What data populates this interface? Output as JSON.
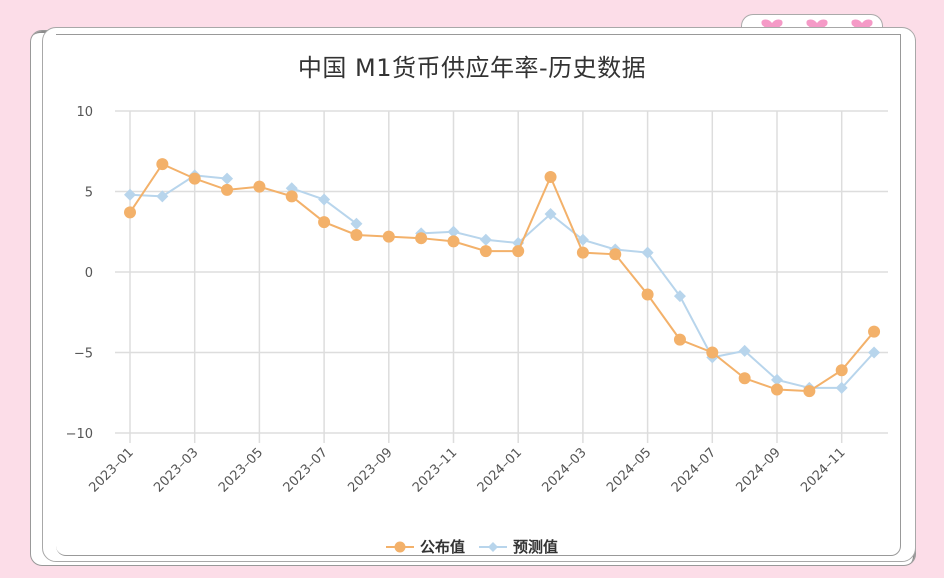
{
  "page": {
    "title": "中国 M1货币供应年率-历史数据"
  },
  "legend": {
    "published_label": "公布值",
    "forecast_label": "预测值"
  },
  "colors": {
    "background": "#fcdde8",
    "published": "#f3b16a",
    "forecast": "#b8d5ec",
    "heart": "#f59ac7",
    "grid": "#dddddd"
  },
  "chart_data": {
    "type": "line",
    "title": "中国 M1货币供应年率-历史数据",
    "xlabel": "",
    "ylabel": "",
    "ylim": [
      -10,
      10
    ],
    "yticks": [
      10,
      5,
      0,
      -5,
      -10
    ],
    "xtick_labels": [
      "2023-01",
      "2023-03",
      "2023-05",
      "2023-07",
      "2023-09",
      "2023-11",
      "2024-01",
      "2024-03",
      "2024-05",
      "2024-07",
      "2024-09",
      "2024-11"
    ],
    "grid": true,
    "legend_position": "bottom",
    "x": [
      "2023-01",
      "2023-02",
      "2023-03",
      "2023-04",
      "2023-05",
      "2023-06",
      "2023-07",
      "2023-08",
      "2023-09",
      "2023-10",
      "2023-11",
      "2023-12",
      "2024-01",
      "2024-02",
      "2024-03",
      "2024-04",
      "2024-05",
      "2024-06",
      "2024-07",
      "2024-08",
      "2024-09",
      "2024-10",
      "2024-11",
      "2024-12"
    ],
    "series": [
      {
        "name": "公布值",
        "marker": "circle",
        "values": [
          3.7,
          6.7,
          5.8,
          5.1,
          5.3,
          4.7,
          3.1,
          2.3,
          2.2,
          2.1,
          1.9,
          1.3,
          1.3,
          5.9,
          1.2,
          1.1,
          -1.4,
          -4.2,
          -5.0,
          -6.6,
          -7.3,
          -7.4,
          -6.1,
          -3.7
        ]
      },
      {
        "name": "预测值",
        "marker": "diamond",
        "values": [
          4.8,
          4.7,
          6.0,
          5.8,
          null,
          5.2,
          4.5,
          3.0,
          null,
          2.4,
          2.5,
          2.0,
          1.8,
          3.6,
          2.0,
          1.4,
          1.2,
          -1.5,
          -5.3,
          -4.9,
          -6.7,
          -7.2,
          -7.2,
          -5.0
        ]
      }
    ]
  }
}
